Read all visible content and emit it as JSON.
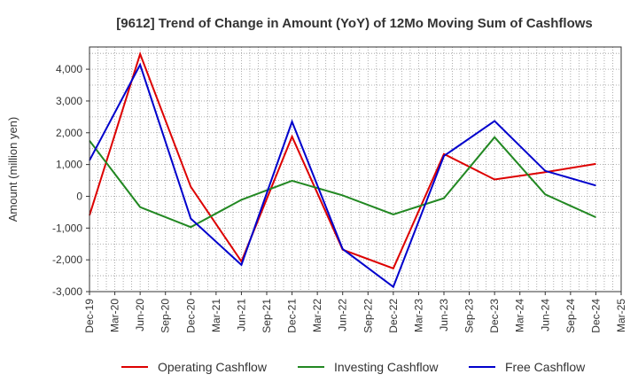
{
  "chart_data": {
    "type": "line",
    "title": "[9612]  Trend of Change in Amount (YoY) of 12Mo Moving Sum of Cashflows",
    "xlabel": "",
    "ylabel": "Amount (million yen)",
    "ylim": [
      -3000,
      4700
    ],
    "yticks": [
      -3000,
      -2000,
      -1000,
      0,
      1000,
      2000,
      3000,
      4000
    ],
    "ytick_labels": [
      "-3,000",
      "-2,000",
      "-1,000",
      "0",
      "1,000",
      "2,000",
      "3,000",
      "4,000"
    ],
    "categories": [
      "Dec-19",
      "Mar-20",
      "Jun-20",
      "Sep-20",
      "Dec-20",
      "Mar-21",
      "Jun-21",
      "Sep-21",
      "Dec-21",
      "Mar-22",
      "Jun-22",
      "Sep-22",
      "Dec-22",
      "Mar-23",
      "Jun-23",
      "Sep-23",
      "Dec-23",
      "Mar-24",
      "Jun-24",
      "Sep-24",
      "Dec-24",
      "Mar-25"
    ],
    "grid": true,
    "legend": "bottom",
    "series": [
      {
        "name": "Operating Cashflow",
        "color": "#dd0000",
        "x": [
          "Dec-19",
          "Jun-20",
          "Dec-20",
          "Jun-21",
          "Dec-21",
          "Jun-22",
          "Dec-22",
          "Jun-23",
          "Dec-23",
          "Jun-24",
          "Dec-24"
        ],
        "values": [
          -600,
          4480,
          300,
          -2050,
          1880,
          -1680,
          -2270,
          1330,
          530,
          760,
          1020
        ]
      },
      {
        "name": "Investing Cashflow",
        "color": "#228822",
        "x": [
          "Dec-19",
          "Jun-20",
          "Dec-20",
          "Jun-21",
          "Dec-21",
          "Jun-22",
          "Dec-22",
          "Jun-23",
          "Dec-23",
          "Jun-24",
          "Dec-24"
        ],
        "values": [
          1750,
          -340,
          -970,
          -110,
          490,
          30,
          -570,
          -60,
          1860,
          60,
          -660
        ]
      },
      {
        "name": "Free Cashflow",
        "color": "#0000cc",
        "x": [
          "Dec-19",
          "Jun-20",
          "Dec-20",
          "Jun-21",
          "Dec-21",
          "Jun-22",
          "Dec-22",
          "Jun-23",
          "Dec-23",
          "Jun-24",
          "Dec-24"
        ],
        "values": [
          1130,
          4140,
          -700,
          -2160,
          2350,
          -1660,
          -2850,
          1270,
          2370,
          800,
          340
        ]
      }
    ]
  }
}
